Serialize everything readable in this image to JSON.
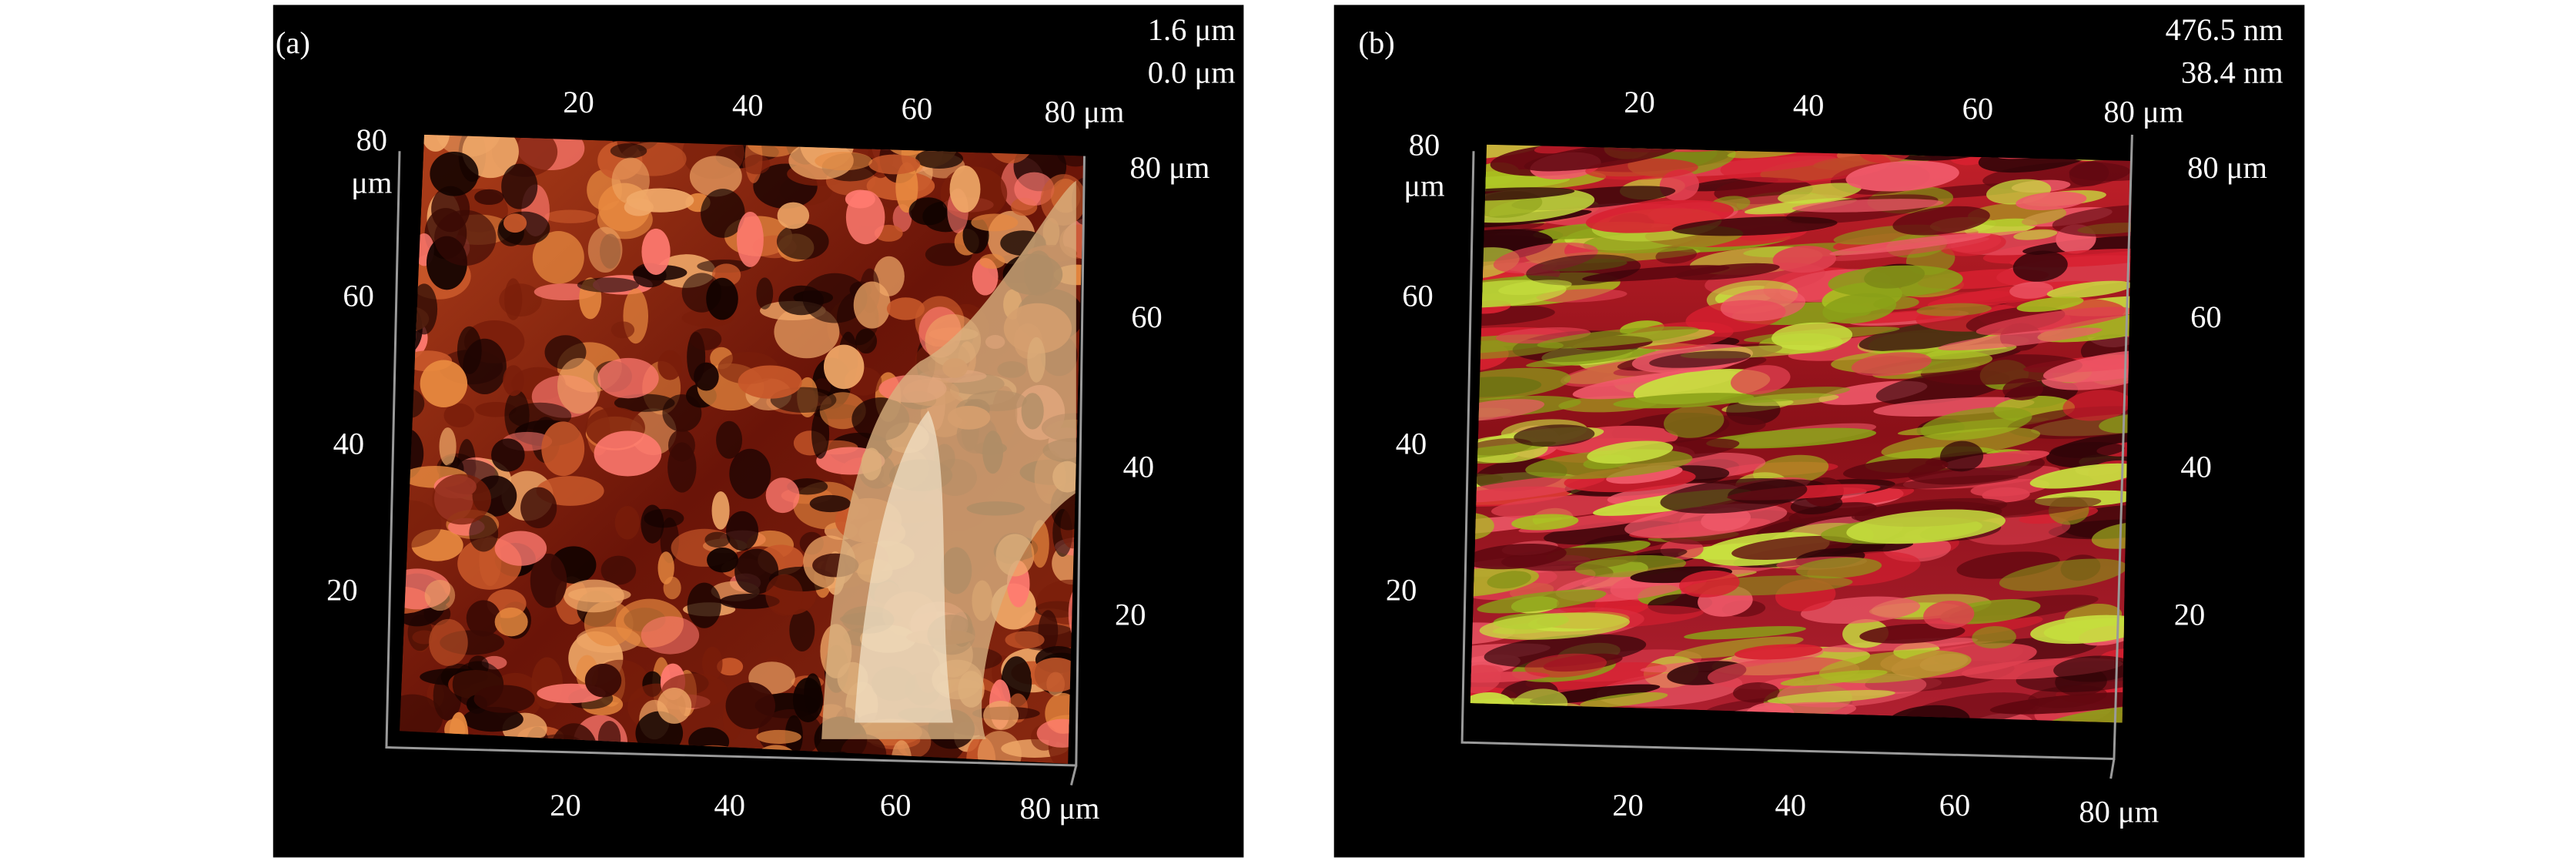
{
  "panels": [
    {
      "label": "(a)",
      "height_max": "1.6 μm",
      "height_min": "0.0 μm",
      "top_axis": [
        "20",
        "40",
        "60",
        "80 μm"
      ],
      "left_axis": [
        "80",
        "60",
        "40",
        "20"
      ],
      "left_axis_unit": "μm",
      "right_axis": [
        "80 μm",
        "60",
        "40",
        "20"
      ],
      "bottom_axis": [
        "20",
        "40",
        "60",
        "80 μm"
      ]
    },
    {
      "label": "(b)",
      "height_max": "476.5 nm",
      "height_min": "38.4 nm",
      "top_axis": [
        "20",
        "40",
        "60",
        "80 μm"
      ],
      "left_axis": [
        "80",
        "60",
        "40",
        "20"
      ],
      "left_axis_unit": "μm",
      "right_axis": [
        "80 μm",
        "60",
        "40",
        "20"
      ],
      "bottom_axis": [
        "20",
        "40",
        "60",
        "80 μm"
      ]
    }
  ]
}
